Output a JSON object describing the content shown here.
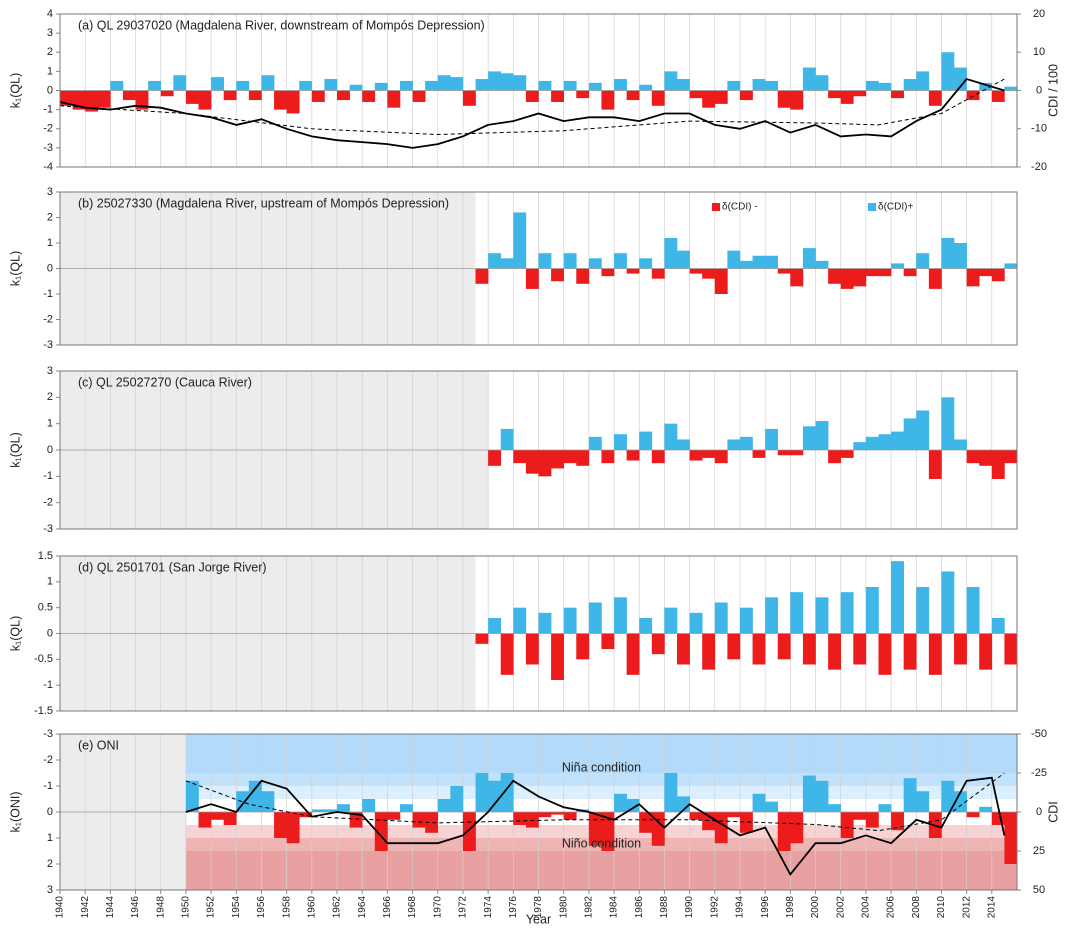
{
  "chart_data": [
    {
      "type": "bar",
      "title": "(a) QL 29037020 (Magdalena River, downstream of Mompós Depression)",
      "ylabel": "k₁(QL)",
      "y2label": "CDI / 100",
      "ylim": [
        -4,
        4
      ],
      "yticks": [
        -4,
        -3,
        -2,
        -1,
        0,
        1,
        2,
        3,
        4
      ],
      "y2lim": [
        -20,
        20
      ],
      "y2ticks": [
        -20,
        -10,
        0,
        10,
        20
      ],
      "colors": {
        "positive": "#3fb6e8",
        "negative": "#ec1c1c"
      },
      "x": [
        1940,
        1941,
        1942,
        1943,
        1944,
        1945,
        1946,
        1947,
        1948,
        1949,
        1950,
        1951,
        1952,
        1953,
        1954,
        1955,
        1956,
        1957,
        1958,
        1959,
        1960,
        1961,
        1962,
        1963,
        1964,
        1965,
        1966,
        1967,
        1968,
        1969,
        1970,
        1971,
        1972,
        1973,
        1974,
        1975,
        1976,
        1977,
        1978,
        1979,
        1980,
        1981,
        1982,
        1983,
        1984,
        1985,
        1986,
        1987,
        1988,
        1989,
        1990,
        1991,
        1992,
        1993,
        1994,
        1995,
        1996,
        1997,
        1998,
        1999,
        2000,
        2001,
        2002,
        2003,
        2004,
        2005,
        2006,
        2007,
        2008,
        2009,
        2010,
        2011,
        2012,
        2013,
        2014,
        2015
      ],
      "values": [
        -0.8,
        -1,
        -1.1,
        -0.9,
        0.5,
        -0.5,
        -1,
        0.5,
        -0.3,
        0.8,
        -0.7,
        -1,
        0.7,
        -0.5,
        0.5,
        -0.5,
        0.8,
        -1,
        -1.2,
        0.5,
        -0.6,
        0.6,
        -0.5,
        0.3,
        -0.6,
        0.4,
        -0.9,
        0.5,
        -0.6,
        0.5,
        0.8,
        0.7,
        -0.8,
        0.6,
        1,
        0.9,
        0.8,
        -0.6,
        0.5,
        -0.6,
        0.5,
        -0.4,
        0.4,
        -1,
        0.6,
        -0.5,
        0.3,
        -0.8,
        1,
        0.6,
        -0.4,
        -0.9,
        -0.7,
        0.5,
        -0.5,
        0.6,
        0.5,
        -0.9,
        -1,
        1.2,
        0.8,
        -0.4,
        -0.7,
        -0.3,
        0.5,
        0.4,
        -0.4,
        0.6,
        1,
        -0.8,
        2,
        1.2,
        -0.5,
        0.4,
        -0.6,
        0.2
      ],
      "lines": [
        {
          "axis": "y2",
          "color": "#000000",
          "dashed": false,
          "x": [
            1940,
            1942,
            1944,
            1946,
            1948,
            1950,
            1952,
            1954,
            1956,
            1958,
            1960,
            1962,
            1964,
            1966,
            1968,
            1970,
            1972,
            1974,
            1976,
            1978,
            1980,
            1982,
            1984,
            1986,
            1988,
            1990,
            1992,
            1994,
            1996,
            1998,
            2000,
            2002,
            2004,
            2006,
            2008,
            2010,
            2012,
            2014,
            2015
          ],
          "values": [
            -3,
            -4.5,
            -5,
            -4,
            -4.5,
            -6,
            -7,
            -9,
            -7.5,
            -10,
            -12,
            -13,
            -13.5,
            -14,
            -15,
            -14,
            -12,
            -9,
            -8,
            -6,
            -8,
            -7,
            -7,
            -8,
            -6,
            -6,
            -9,
            -10,
            -8,
            -11,
            -9,
            -12,
            -11.5,
            -12,
            -8,
            -5,
            3,
            1,
            0
          ]
        },
        {
          "axis": "y2",
          "color": "#000000",
          "dashed": true,
          "x": [
            1940,
            1950,
            1960,
            1970,
            1980,
            1990,
            2000,
            2005,
            2010,
            2015
          ],
          "values": [
            -4,
            -6,
            -10,
            -11.5,
            -10.5,
            -8,
            -8.5,
            -9,
            -6,
            3
          ]
        }
      ]
    },
    {
      "type": "bar",
      "title": "(b) 25027330 (Magdalena River, upstream of Mompós Depression)",
      "ylabel": "k₁(QL)",
      "ylim": [
        -3,
        3
      ],
      "yticks": [
        -3,
        -2,
        -1,
        0,
        1,
        2,
        3
      ],
      "colors": {
        "positive": "#3fb6e8",
        "negative": "#ec1c1c"
      },
      "legend": [
        {
          "label": "δ(CDI) -",
          "color": "#ec1c1c"
        },
        {
          "label": "δ(CDI)+",
          "color": "#3fb6e8"
        }
      ],
      "x": [
        1973,
        1974,
        1975,
        1976,
        1977,
        1978,
        1979,
        1980,
        1981,
        1982,
        1983,
        1984,
        1985,
        1986,
        1987,
        1988,
        1989,
        1990,
        1991,
        1992,
        1993,
        1994,
        1995,
        1996,
        1997,
        1998,
        1999,
        2000,
        2001,
        2002,
        2003,
        2004,
        2005,
        2006,
        2007,
        2008,
        2009,
        2010,
        2011,
        2012,
        2013,
        2014,
        2015
      ],
      "values": [
        -0.6,
        0.6,
        0.4,
        2.2,
        -0.8,
        0.6,
        -0.5,
        0.6,
        -0.6,
        0.4,
        -0.3,
        0.6,
        -0.2,
        0.4,
        -0.4,
        1.2,
        0.7,
        -0.2,
        -0.4,
        -1,
        0.7,
        0.3,
        0.5,
        0.5,
        -0.2,
        -0.7,
        0.8,
        0.3,
        -0.6,
        -0.8,
        -0.7,
        -0.3,
        -0.3,
        0.2,
        -0.3,
        0.6,
        -0.8,
        1.2,
        1,
        -0.7,
        -0.3,
        -0.5,
        0.2
      ]
    },
    {
      "type": "bar",
      "title": "(c) QL 25027270 (Cauca River)",
      "ylabel": "k₁(QL)",
      "ylim": [
        -3,
        3
      ],
      "yticks": [
        -3,
        -2,
        -1,
        0,
        1,
        2,
        3
      ],
      "colors": {
        "positive": "#3fb6e8",
        "negative": "#ec1c1c"
      },
      "x": [
        1974,
        1975,
        1976,
        1977,
        1978,
        1979,
        1980,
        1981,
        1982,
        1983,
        1984,
        1985,
        1986,
        1987,
        1988,
        1989,
        1990,
        1991,
        1992,
        1993,
        1994,
        1995,
        1996,
        1997,
        1998,
        1999,
        2000,
        2001,
        2002,
        2003,
        2004,
        2005,
        2006,
        2007,
        2008,
        2009,
        2010,
        2011,
        2012,
        2013,
        2014,
        2015
      ],
      "values": [
        -0.6,
        0.8,
        -0.5,
        -0.9,
        -1,
        -0.7,
        -0.5,
        -0.6,
        0.5,
        -0.5,
        0.6,
        -0.4,
        0.7,
        -0.5,
        1,
        0.4,
        -0.4,
        -0.3,
        -0.5,
        0.4,
        0.5,
        -0.3,
        0.8,
        -0.2,
        -0.2,
        0.9,
        1.1,
        -0.5,
        -0.3,
        0.3,
        0.5,
        0.6,
        0.7,
        1.2,
        1.5,
        -1.1,
        2,
        0.4,
        -0.5,
        -0.6,
        -1.1,
        -0.5
      ]
    },
    {
      "type": "bar",
      "title": "(d) QL 2501701 (San Jorge River)",
      "ylabel": "k₁(QL)",
      "ylim": [
        -1.5,
        1.5
      ],
      "yticks": [
        -1.5,
        -1,
        -0.5,
        0,
        0.5,
        1,
        1.5
      ],
      "colors": {
        "positive": "#3fb6e8",
        "negative": "#ec1c1c"
      },
      "x": [
        1973,
        1974,
        1975,
        1976,
        1977,
        1978,
        1979,
        1980,
        1981,
        1982,
        1983,
        1984,
        1985,
        1986,
        1987,
        1988,
        1989,
        1990,
        1991,
        1992,
        1993,
        1994,
        1995,
        1996,
        1997,
        1998,
        1999,
        2000,
        2001,
        2002,
        2003,
        2004,
        2005,
        2006,
        2007,
        2008,
        2009,
        2010,
        2011,
        2012,
        2013,
        2014,
        2015
      ],
      "values": [
        -0.2,
        0.3,
        -0.8,
        0.5,
        -0.6,
        0.4,
        -0.9,
        0.5,
        -0.5,
        0.6,
        -0.3,
        0.7,
        -0.8,
        0.3,
        -0.4,
        0.5,
        -0.6,
        0.4,
        -0.7,
        0.6,
        -0.5,
        0.5,
        -0.6,
        0.7,
        -0.5,
        0.8,
        -0.6,
        0.7,
        -0.7,
        0.8,
        -0.6,
        0.9,
        -0.8,
        1.4,
        -0.7,
        0.9,
        -0.8,
        1.2,
        -0.6,
        0.9,
        -0.7,
        0.3,
        -0.6
      ]
    },
    {
      "type": "bar",
      "title": "(e) ONI",
      "ylabel": "k₁(ONI)",
      "y2label": "CDI",
      "xlabel": "Year",
      "annotations": [
        "Niña condition",
        "Niño condition"
      ],
      "xlim": [
        1940,
        2016
      ],
      "xticks": [
        1940,
        1942,
        1944,
        1946,
        1948,
        1950,
        1952,
        1954,
        1956,
        1958,
        1960,
        1962,
        1964,
        1966,
        1968,
        1970,
        1972,
        1974,
        1976,
        1978,
        1980,
        1982,
        1984,
        1986,
        1988,
        1990,
        1992,
        1994,
        1996,
        1998,
        2000,
        2002,
        2004,
        2006,
        2008,
        2010,
        2012,
        2014
      ],
      "ylim": [
        3,
        -3
      ],
      "yticks": [
        3,
        2,
        1,
        0,
        -1,
        -2,
        -3
      ],
      "y2lim": [
        50,
        -50
      ],
      "y2ticks": [
        50,
        25,
        0,
        -25,
        -50
      ],
      "colors": {
        "positive": "#ec1c1c",
        "negative": "#3fb6e8"
      },
      "x": [
        1950,
        1951,
        1952,
        1953,
        1954,
        1955,
        1956,
        1957,
        1958,
        1959,
        1960,
        1961,
        1962,
        1963,
        1964,
        1965,
        1966,
        1967,
        1968,
        1969,
        1970,
        1971,
        1972,
        1973,
        1974,
        1975,
        1976,
        1977,
        1978,
        1979,
        1980,
        1981,
        1982,
        1983,
        1984,
        1985,
        1986,
        1987,
        1988,
        1989,
        1990,
        1991,
        1992,
        1993,
        1994,
        1995,
        1996,
        1997,
        1998,
        1999,
        2000,
        2001,
        2002,
        2003,
        2004,
        2005,
        2006,
        2007,
        2008,
        2009,
        2010,
        2011,
        2012,
        2013,
        2014,
        2015
      ],
      "values": [
        -1.2,
        0.6,
        0.3,
        0.5,
        -0.8,
        -1.2,
        -0.8,
        1,
        1.2,
        0.2,
        -0.1,
        -0.1,
        -0.3,
        0.6,
        -0.5,
        1.5,
        0.3,
        -0.3,
        0.6,
        0.8,
        -0.5,
        -1,
        1.5,
        -1.5,
        -1.2,
        -1.5,
        0.5,
        0.6,
        0.2,
        0.1,
        0.3,
        -0.1,
        1.3,
        1.5,
        -0.7,
        -0.5,
        0.8,
        1.3,
        -1.5,
        -0.6,
        0.3,
        0.7,
        1.2,
        0.2,
        0.8,
        -0.7,
        -0.4,
        1.5,
        1.2,
        -1.4,
        -1.2,
        -0.3,
        1,
        0.3,
        0.6,
        -0.3,
        0.7,
        -1.3,
        -0.8,
        1,
        -1.2,
        -0.8,
        0.2,
        -0.2,
        0.5,
        2
      ],
      "lines": [
        {
          "axis": "y2",
          "color": "#000000",
          "dashed": false,
          "x": [
            1950,
            1952,
            1954,
            1956,
            1958,
            1960,
            1962,
            1964,
            1966,
            1968,
            1970,
            1972,
            1974,
            1976,
            1978,
            1980,
            1982,
            1984,
            1986,
            1988,
            1990,
            1992,
            1994,
            1996,
            1998,
            2000,
            2002,
            2004,
            2006,
            2008,
            2010,
            2012,
            2014,
            2015
          ],
          "values": [
            0,
            -5,
            0,
            -20,
            -15,
            3,
            0,
            2,
            20,
            20,
            20,
            15,
            0,
            -20,
            -10,
            -3,
            0,
            5,
            -5,
            10,
            -5,
            5,
            15,
            10,
            40,
            20,
            20,
            15,
            20,
            5,
            10,
            -20,
            -22,
            15
          ]
        },
        {
          "axis": "y2",
          "color": "#000000",
          "dashed": true,
          "x": [
            1950,
            1955,
            1960,
            1970,
            1980,
            1990,
            2000,
            2005,
            2010,
            2015
          ],
          "values": [
            -20,
            -5,
            3,
            7,
            5,
            5,
            8,
            12,
            5,
            -25
          ]
        }
      ]
    }
  ]
}
